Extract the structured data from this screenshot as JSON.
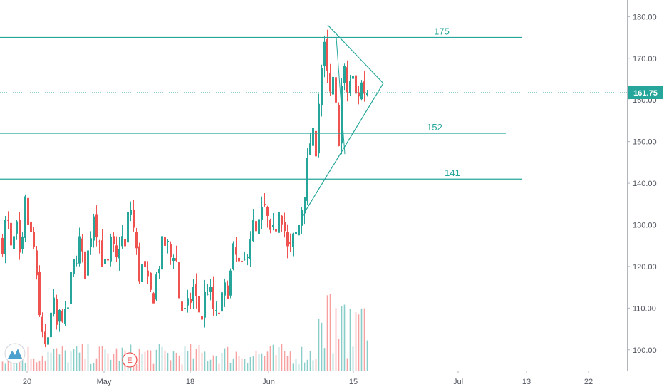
{
  "chart_data": {
    "type": "candlestick",
    "title": "",
    "xlabel": "",
    "ylabel": "",
    "ylim": [
      95,
      184
    ],
    "y_ticks": [
      100,
      110,
      120,
      130,
      140,
      150,
      160,
      170,
      180
    ],
    "y_tick_labels": [
      "100.00",
      "110.00",
      "120.00",
      "130.00",
      "140.00",
      "150.00",
      "160.00",
      "170.00",
      "180.00"
    ],
    "x_tick_labels": [
      "20",
      "May",
      "18",
      "Jun",
      "15",
      "Jul",
      "13",
      "22"
    ],
    "last_price": 161.75,
    "last_price_label": "161.75",
    "colors": {
      "up": "#26a69a",
      "down": "#ef5350",
      "level": "#26a69a",
      "pattern": "#26a69a"
    },
    "levels": [
      {
        "value": 175,
        "label": "175"
      },
      {
        "value": 152,
        "label": "152"
      },
      {
        "value": 141,
        "label": "141"
      }
    ],
    "pattern": {
      "name": "symmetrical-triangle",
      "upper": [
        [
          175,
          0
        ],
        [
          164,
          1
        ]
      ],
      "lower": [
        [
          147,
          0
        ],
        [
          164,
          1
        ]
      ],
      "note_values_only": true
    },
    "price_path": [
      126,
      132,
      122,
      130,
      118,
      135,
      128,
      124,
      108,
      104,
      100,
      112,
      105,
      110,
      106,
      116,
      122,
      126,
      118,
      124,
      134,
      128,
      122,
      118,
      126,
      120,
      128,
      124,
      136,
      128,
      118,
      120,
      115,
      112,
      118,
      124,
      126,
      122,
      125,
      112,
      108,
      110,
      115,
      110,
      108,
      116,
      112,
      107,
      110,
      114,
      116,
      124,
      120,
      118,
      125,
      130,
      127,
      132,
      134,
      126,
      128,
      136,
      130,
      122,
      126,
      128,
      135,
      142,
      152,
      148,
      166,
      172,
      160,
      164,
      150,
      168,
      162,
      166,
      160,
      164,
      162,
      161.75
    ]
  },
  "watermark": {
    "icon": "tradingview-logo-icon"
  },
  "event_marker": {
    "label": "E"
  }
}
